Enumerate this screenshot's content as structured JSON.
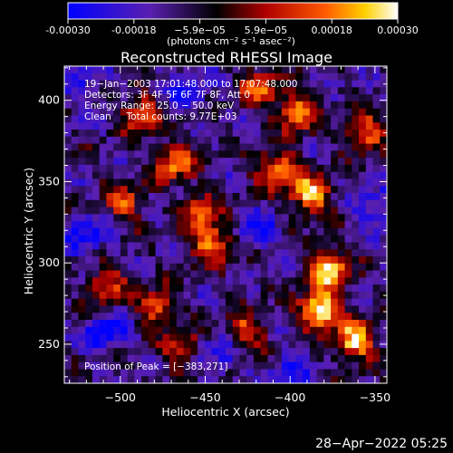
{
  "colorbar": {
    "ticks": [
      "-0.00030",
      "-0.00018",
      "−5.9e−05",
      "5.9e−05",
      "0.00018",
      "0.00030"
    ],
    "unit_label": "(photons cm⁻² s⁻¹ asec⁻²)",
    "colors": [
      "#0000ff",
      "#5a1fb0",
      "#000000",
      "#b00000",
      "#ff5a00",
      "#ffd000",
      "#ffffff"
    ]
  },
  "annotations": {
    "time": "19−Jan−2003 17:01:48.000 to 17:07:48.000",
    "detectors": "Detectors: 3F 4F 5F 6F 7F 8F, Att 0",
    "energy": "Energy Range: 25.0 − 50.0 keV",
    "clean": "Clean     Total counts: 9.77E+03",
    "peak": "Position of Peak = [−383,271]"
  },
  "footer": {
    "date": "28−Apr−2022 05:25"
  },
  "chart_data": {
    "type": "heatmap",
    "title": "Reconstructed RHESSI Image",
    "xlabel": "Heliocentric X (arcsec)",
    "ylabel": "Heliocentric Y (arcsec)",
    "xlim": [
      -533,
      -343
    ],
    "ylim": [
      226,
      421
    ],
    "xticks": [
      -500,
      -450,
      -400,
      -350
    ],
    "yticks": [
      250,
      300,
      350,
      400
    ],
    "xtick_labels": [
      "−500",
      "−450",
      "−400",
      "−350"
    ],
    "ytick_labels": [
      "250",
      "300",
      "350",
      "400"
    ],
    "value_range": [
      -0.0003,
      0.0003
    ],
    "peak_position": [
      -383,
      271
    ],
    "hot_regions": [
      {
        "x": -383,
        "y": 271,
        "level": 1.0
      },
      {
        "x": -378,
        "y": 296,
        "level": 0.9
      },
      {
        "x": -362,
        "y": 252,
        "level": 0.85
      },
      {
        "x": -388,
        "y": 342,
        "level": 0.8
      },
      {
        "x": -408,
        "y": 357,
        "level": 0.75
      },
      {
        "x": -395,
        "y": 392,
        "level": 0.7
      },
      {
        "x": -356,
        "y": 380,
        "level": 0.65
      },
      {
        "x": -446,
        "y": 312,
        "level": 0.7
      },
      {
        "x": -468,
        "y": 362,
        "level": 0.65
      },
      {
        "x": -488,
        "y": 392,
        "level": 0.6
      },
      {
        "x": -478,
        "y": 272,
        "level": 0.6
      },
      {
        "x": -508,
        "y": 286,
        "level": 0.55
      },
      {
        "x": -428,
        "y": 257,
        "level": 0.6
      },
      {
        "x": -453,
        "y": 332,
        "level": 0.55
      },
      {
        "x": -498,
        "y": 337,
        "level": 0.5
      },
      {
        "x": -418,
        "y": 407,
        "level": 0.55
      },
      {
        "x": -463,
        "y": 247,
        "level": 0.5
      }
    ],
    "cold_regions": [
      {
        "x": -508,
        "y": 257,
        "level": 1.0
      },
      {
        "x": -441,
        "y": 245,
        "level": 0.9
      },
      {
        "x": -520,
        "y": 316,
        "level": 0.85
      },
      {
        "x": -420,
        "y": 322,
        "level": 0.75
      },
      {
        "x": -460,
        "y": 405,
        "level": 0.7
      },
      {
        "x": -350,
        "y": 335,
        "level": 0.7
      },
      {
        "x": -398,
        "y": 232,
        "level": 0.65
      },
      {
        "x": -520,
        "y": 410,
        "level": 0.6
      }
    ]
  }
}
